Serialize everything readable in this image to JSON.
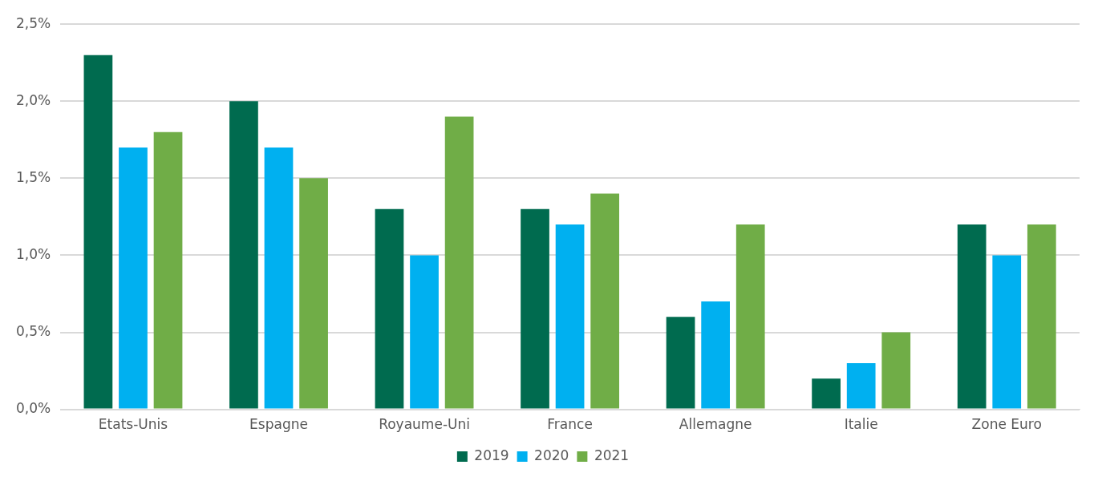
{
  "chart_data": {
    "type": "bar",
    "categories": [
      "Etats-Unis",
      "Espagne",
      "Royaume-Uni",
      "France",
      "Allemagne",
      "Italie",
      "Zone Euro"
    ],
    "series": [
      {
        "name": "2019",
        "color": "#006b4f",
        "values": [
          2.3,
          2.0,
          1.3,
          1.3,
          0.6,
          0.2,
          1.2
        ]
      },
      {
        "name": "2020",
        "color": "#00b0f0",
        "values": [
          1.7,
          1.7,
          1.0,
          1.2,
          0.7,
          0.3,
          1.0
        ]
      },
      {
        "name": "2021",
        "color": "#70ad47",
        "values": [
          1.8,
          1.5,
          1.9,
          1.4,
          1.2,
          0.5,
          1.2
        ]
      }
    ],
    "ylim": [
      0,
      2.5
    ],
    "yticks": [
      {
        "value": 0,
        "label": "0,0%"
      },
      {
        "value": 0.5,
        "label": "0,5%"
      },
      {
        "value": 1,
        "label": "1,0%"
      },
      {
        "value": 1.5,
        "label": "1,5%"
      },
      {
        "value": 2,
        "label": "2,0%"
      },
      {
        "value": 2.5,
        "label": "2,5%"
      }
    ],
    "grid": "y",
    "legend": "bottom"
  }
}
